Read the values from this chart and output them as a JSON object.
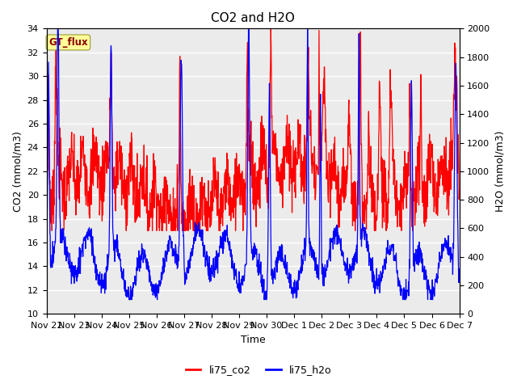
{
  "title": "CO2 and H2O",
  "xlabel": "Time",
  "ylabel_left": "CO2 (mmol/m3)",
  "ylabel_right": "H2O (mmol/m3)",
  "ylim_left": [
    10,
    34
  ],
  "ylim_right": [
    0,
    2000
  ],
  "yticks_left": [
    10,
    12,
    14,
    16,
    18,
    20,
    22,
    24,
    26,
    28,
    30,
    32,
    34
  ],
  "yticks_right": [
    0,
    200,
    400,
    600,
    800,
    1000,
    1200,
    1400,
    1600,
    1800,
    2000
  ],
  "xtick_labels": [
    "Nov 22",
    "Nov 23",
    "Nov 24",
    "Nov 25",
    "Nov 26",
    "Nov 27",
    "Nov 28",
    "Nov 29",
    "Nov 30",
    "Dec 1",
    "Dec 2",
    "Dec 3",
    "Dec 4",
    "Dec 5",
    "Dec 6",
    "Dec 7"
  ],
  "color_co2": "#ff0000",
  "color_h2o": "#0000ff",
  "legend_label_co2": "li75_co2",
  "legend_label_h2o": "li75_h2o",
  "annotation_text": "GT_flux",
  "annotation_color": "#8B0000",
  "annotation_bg": "#ffff99",
  "bg_color": "#ebebeb",
  "title_fontsize": 11,
  "axis_label_fontsize": 9,
  "tick_fontsize": 8
}
